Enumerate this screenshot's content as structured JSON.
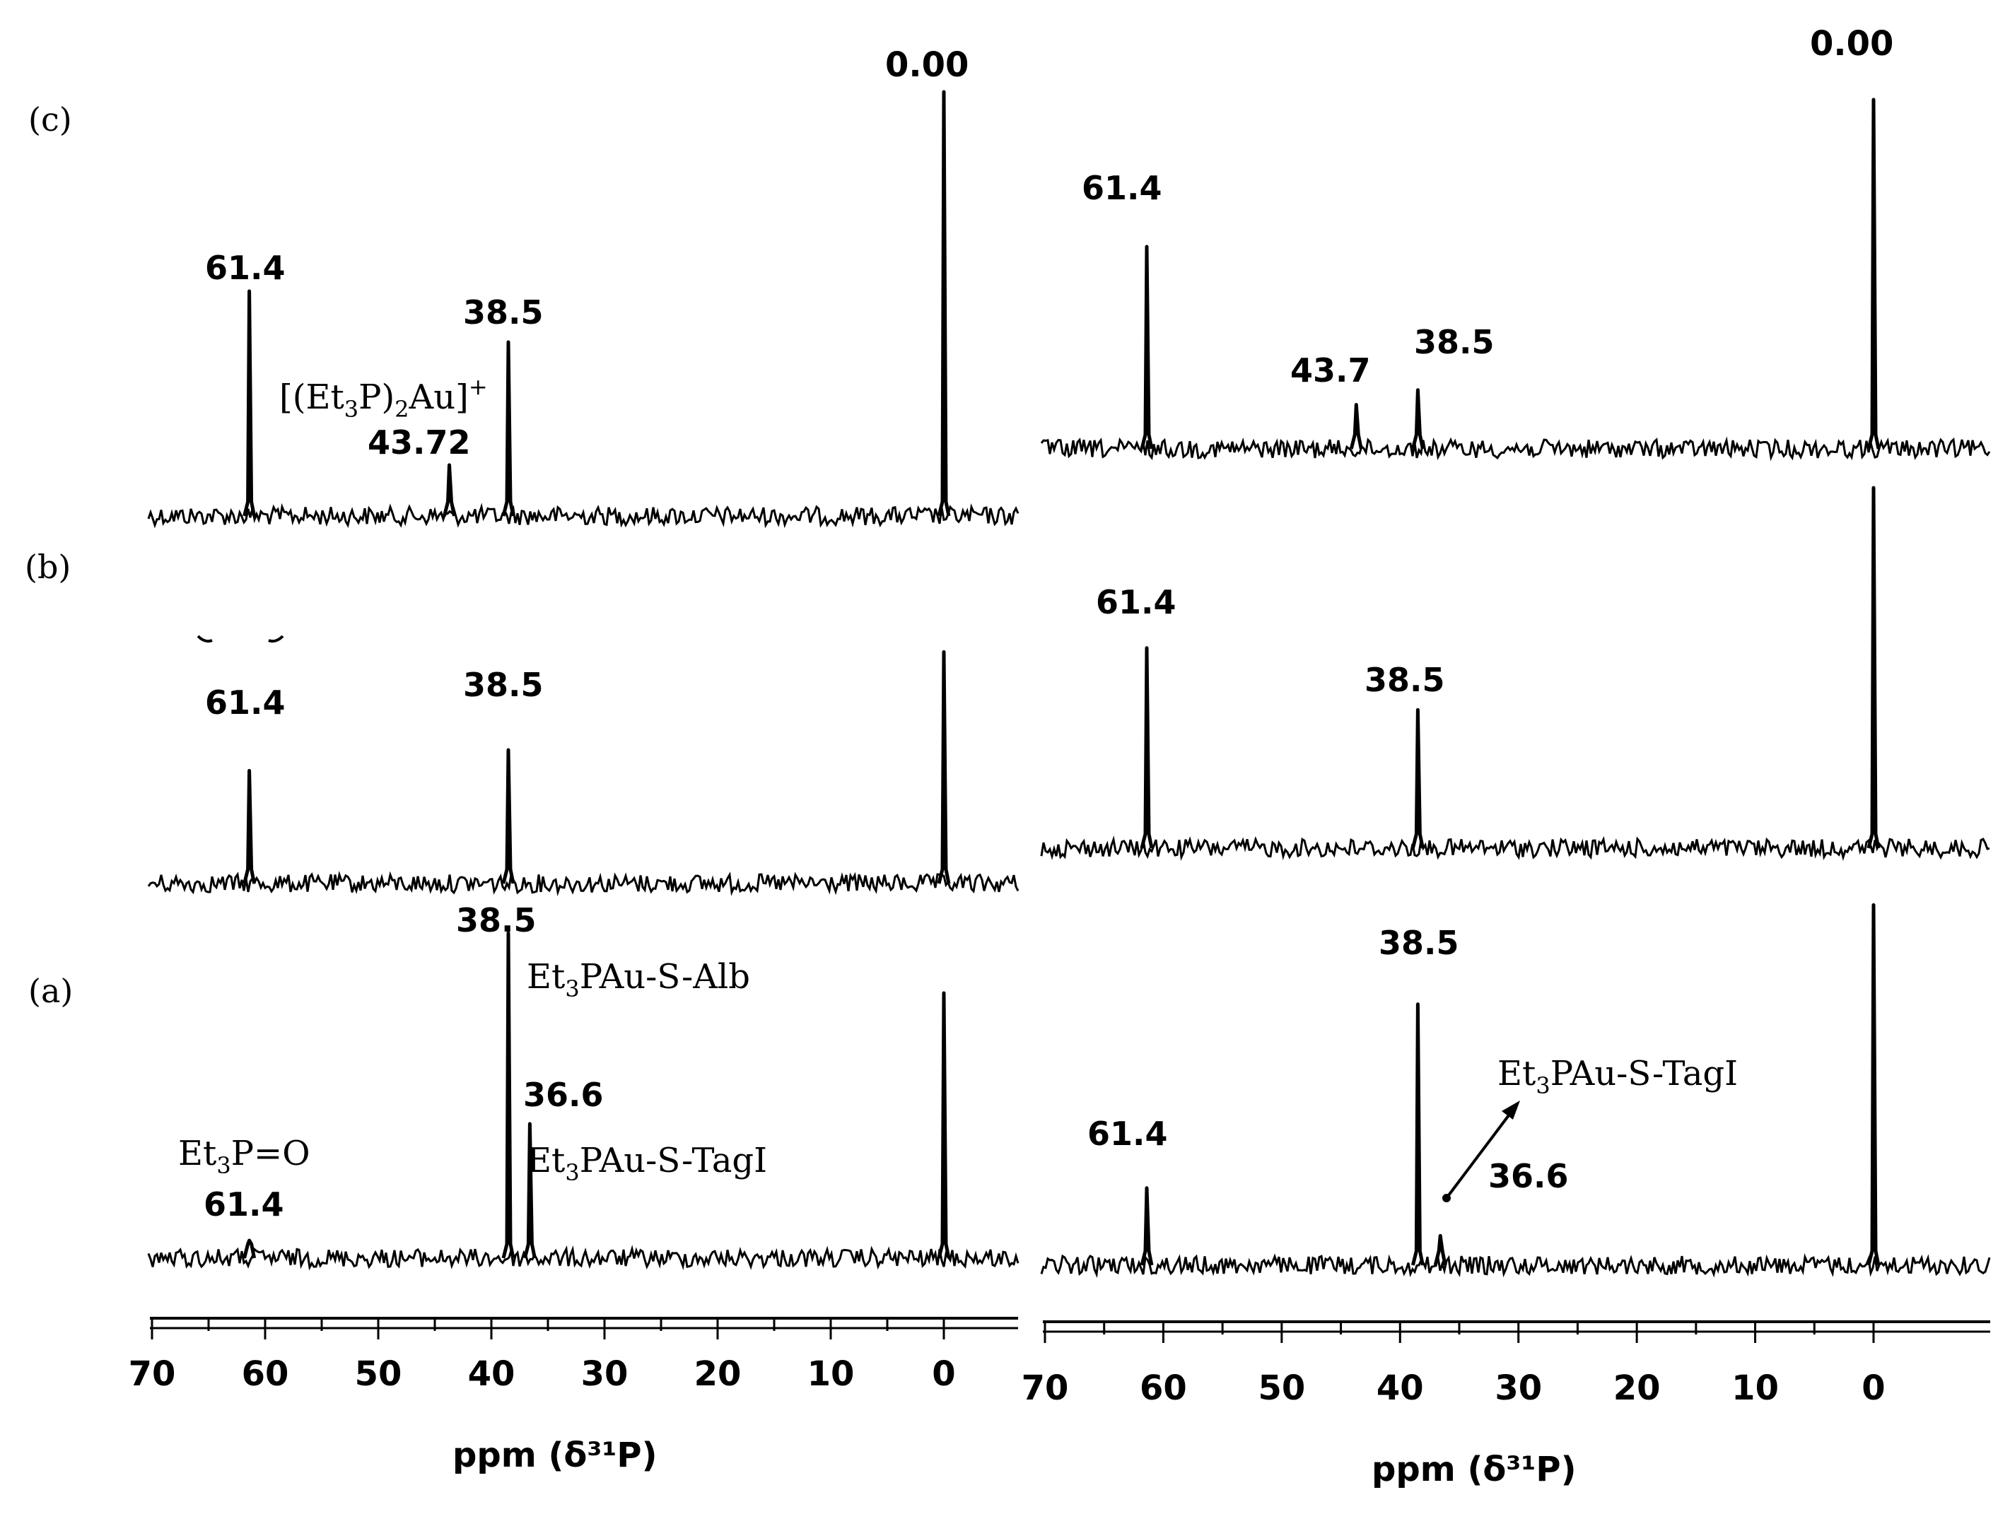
{
  "panel_labels": {
    "c": "(c)",
    "b": "(b)",
    "a": "(a)"
  },
  "axis_label_left": "ppm (δ³¹P)",
  "axis_label_right": "ppm (δ³¹P)",
  "chart_data": [
    {
      "type": "line",
      "panel": "left",
      "xlabel": "ppm (δ³¹P)",
      "xlim": [
        70,
        -6
      ],
      "x_reversed": true,
      "xticks": [
        70,
        60,
        50,
        40,
        30,
        20,
        10,
        0
      ],
      "spectra": [
        {
          "trace": "c",
          "peaks": [
            {
              "ppm": 61.4,
              "height": 0.53
            },
            {
              "ppm": 43.72,
              "height": 0.12
            },
            {
              "ppm": 38.5,
              "height": 0.41
            },
            {
              "ppm": 0.0,
              "height": 1.0
            }
          ],
          "annotations": [
            {
              "text": "61.4"
            },
            {
              "text": "38.5"
            },
            {
              "text": "43.72"
            },
            {
              "text": "0.00"
            }
          ],
          "compound_label": {
            "before": "[(Et",
            "sub": "3",
            "mid": "P)",
            "sub2": "2",
            "after": "Au]",
            "sup": "+"
          }
        },
        {
          "trace": "b",
          "peaks": [
            {
              "ppm": 61.4,
              "height": 0.38
            },
            {
              "ppm": 38.5,
              "height": 0.45
            },
            {
              "ppm": 0.0,
              "height": 0.78
            }
          ],
          "annotations": [
            {
              "text": "61.4"
            },
            {
              "text": "38.5"
            }
          ]
        },
        {
          "trace": "a",
          "peaks": [
            {
              "ppm": 61.4,
              "height": 0.05
            },
            {
              "ppm": 38.5,
              "height": 0.92
            },
            {
              "ppm": 36.6,
              "height": 0.38
            },
            {
              "ppm": 0.0,
              "height": 0.75
            }
          ],
          "annotations": [
            {
              "text": "38.5"
            },
            {
              "text": "36.6"
            },
            {
              "text": "61.4"
            }
          ],
          "compound_labels": [
            {
              "before": "Et",
              "sub": "3",
              "after": "PAu-S-Alb"
            },
            {
              "before": "Et",
              "sub": "3",
              "after": "PAu-S-TagI"
            },
            {
              "before": "Et",
              "sub": "3",
              "after": "P=O"
            }
          ]
        }
      ]
    },
    {
      "type": "line",
      "panel": "right",
      "xlabel": "ppm (δ³¹P)",
      "xlim": [
        70,
        -10
      ],
      "x_reversed": true,
      "xticks": [
        70,
        60,
        50,
        40,
        30,
        20,
        10,
        0
      ],
      "spectra": [
        {
          "trace": "c",
          "peaks": [
            {
              "ppm": 61.4,
              "height": 0.55
            },
            {
              "ppm": 43.7,
              "height": 0.12
            },
            {
              "ppm": 38.5,
              "height": 0.16
            },
            {
              "ppm": 0.0,
              "height": 0.95
            }
          ],
          "annotations": [
            {
              "text": "0.00"
            },
            {
              "text": "61.4"
            },
            {
              "text": "43.7"
            },
            {
              "text": "38.5"
            }
          ]
        },
        {
          "trace": "b",
          "peaks": [
            {
              "ppm": 61.4,
              "height": 0.55
            },
            {
              "ppm": 38.5,
              "height": 0.38
            },
            {
              "ppm": 0.0,
              "height": 0.99
            }
          ],
          "annotations": [
            {
              "text": "61.4"
            },
            {
              "text": "38.5"
            }
          ]
        },
        {
          "trace": "a",
          "peaks": [
            {
              "ppm": 61.4,
              "height": 0.21
            },
            {
              "ppm": 38.5,
              "height": 0.71
            },
            {
              "ppm": 36.6,
              "height": 0.08
            },
            {
              "ppm": 0.0,
              "height": 0.98
            }
          ],
          "annotations": [
            {
              "text": "38.5"
            },
            {
              "text": "61.4"
            },
            {
              "text": "36.6"
            }
          ],
          "compound_labels": [
            {
              "before": "Et",
              "sub": "3",
              "after": "PAu-S-TagI"
            }
          ]
        }
      ]
    }
  ]
}
